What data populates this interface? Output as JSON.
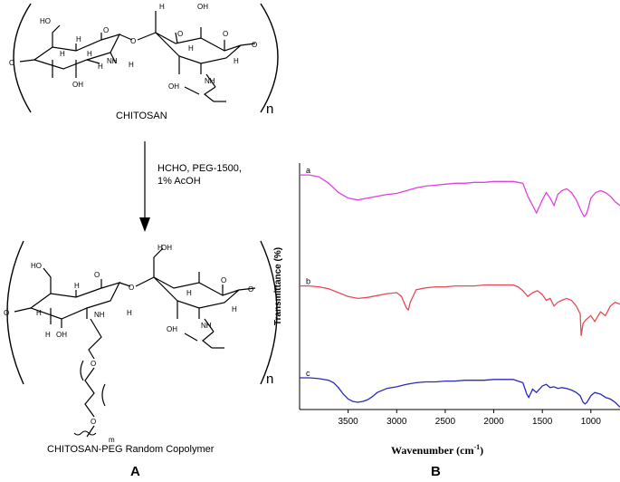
{
  "panel_a": {
    "letter": "A",
    "top_caption": "CHITOSAN",
    "bottom_caption": "CHITOSAN-PEG Random Copolymer",
    "reaction_line1": "HCHO, PEG-1500,",
    "reaction_line2": "1% AcOH",
    "repeat_n_top": "n",
    "repeat_n_bottom": "n",
    "peg_m": "m",
    "atoms": {
      "ho": "HO",
      "oh": "OH",
      "h": "H",
      "o": "O",
      "nh2": "NH2",
      "nh": "NH"
    }
  },
  "panel_b": {
    "letter": "B",
    "xlabel": "Wavenumber (cm",
    "xlabel_sup": "-1",
    "xlabel_close": ")",
    "ylabel": "Transmittance (%)",
    "curve_labels": [
      "a",
      "b",
      "c"
    ],
    "colors": {
      "a": "#e040e0",
      "b": "#e84a55",
      "c": "#2a2ab8"
    }
  },
  "chart_data": {
    "type": "line",
    "xlabel": "Wavenumber (cm-1)",
    "ylabel": "Transmittance (%)",
    "xlim": [
      4000,
      700
    ],
    "x_reversed": true,
    "xticks": [
      3500,
      3000,
      2500,
      2000,
      1500,
      1000
    ],
    "series": [
      {
        "name": "a",
        "x": [
          4000,
          3900,
          3800,
          3700,
          3600,
          3500,
          3400,
          3300,
          3200,
          3100,
          3000,
          2900,
          2800,
          2700,
          2600,
          2500,
          2400,
          2300,
          2200,
          2100,
          2000,
          1900,
          1800,
          1750,
          1700,
          1650,
          1600,
          1560,
          1500,
          1460,
          1420,
          1380,
          1340,
          1300,
          1250,
          1200,
          1150,
          1100,
          1070,
          1050,
          1030,
          1000,
          950,
          900,
          850,
          800,
          750,
          700
        ],
        "y": [
          0.93,
          0.93,
          0.91,
          0.84,
          0.74,
          0.68,
          0.66,
          0.68,
          0.7,
          0.72,
          0.73,
          0.76,
          0.79,
          0.81,
          0.82,
          0.83,
          0.84,
          0.84,
          0.85,
          0.85,
          0.86,
          0.86,
          0.86,
          0.85,
          0.84,
          0.7,
          0.6,
          0.52,
          0.66,
          0.74,
          0.68,
          0.6,
          0.72,
          0.76,
          0.78,
          0.74,
          0.66,
          0.54,
          0.48,
          0.5,
          0.56,
          0.68,
          0.74,
          0.76,
          0.74,
          0.7,
          0.64,
          0.6
        ]
      },
      {
        "name": "b",
        "x": [
          4000,
          3900,
          3800,
          3700,
          3600,
          3500,
          3400,
          3300,
          3200,
          3100,
          3000,
          2950,
          2900,
          2880,
          2860,
          2800,
          2700,
          2600,
          2500,
          2400,
          2300,
          2200,
          2100,
          2000,
          1900,
          1800,
          1750,
          1700,
          1650,
          1600,
          1550,
          1500,
          1460,
          1420,
          1380,
          1340,
          1300,
          1250,
          1200,
          1150,
          1110,
          1100,
          1080,
          1050,
          1000,
          960,
          900,
          850,
          800,
          750,
          700
        ],
        "y": [
          0.57,
          0.57,
          0.56,
          0.54,
          0.5,
          0.46,
          0.44,
          0.45,
          0.47,
          0.49,
          0.5,
          0.46,
          0.34,
          0.32,
          0.4,
          0.53,
          0.55,
          0.56,
          0.56,
          0.57,
          0.57,
          0.57,
          0.58,
          0.58,
          0.58,
          0.58,
          0.56,
          0.52,
          0.46,
          0.5,
          0.52,
          0.48,
          0.42,
          0.44,
          0.36,
          0.4,
          0.42,
          0.44,
          0.42,
          0.36,
          0.28,
          0.05,
          0.18,
          0.22,
          0.26,
          0.2,
          0.3,
          0.26,
          0.36,
          0.4,
          0.38
        ]
      },
      {
        "name": "c",
        "x": [
          4000,
          3900,
          3800,
          3700,
          3650,
          3600,
          3550,
          3500,
          3450,
          3400,
          3350,
          3300,
          3250,
          3200,
          3100,
          3000,
          2900,
          2800,
          2700,
          2600,
          2500,
          2400,
          2300,
          2200,
          2100,
          2000,
          1900,
          1800,
          1750,
          1700,
          1660,
          1640,
          1600,
          1560,
          1500,
          1460,
          1420,
          1380,
          1340,
          1300,
          1250,
          1200,
          1150,
          1110,
          1080,
          1060,
          1040,
          1020,
          1000,
          960,
          900,
          850,
          800,
          750,
          700
        ],
        "y": [
          0.3,
          0.3,
          0.29,
          0.27,
          0.24,
          0.18,
          0.1,
          0.04,
          0.01,
          0.0,
          0.01,
          0.03,
          0.07,
          0.12,
          0.17,
          0.19,
          0.22,
          0.24,
          0.25,
          0.25,
          0.26,
          0.26,
          0.27,
          0.27,
          0.27,
          0.28,
          0.28,
          0.28,
          0.26,
          0.24,
          0.1,
          0.06,
          0.16,
          0.12,
          0.2,
          0.22,
          0.18,
          0.19,
          0.17,
          0.18,
          0.17,
          0.15,
          0.12,
          0.08,
          0.0,
          -0.02,
          0.0,
          0.04,
          0.08,
          0.12,
          0.1,
          0.06,
          0.04,
          0.0,
          -0.06
        ]
      }
    ]
  }
}
